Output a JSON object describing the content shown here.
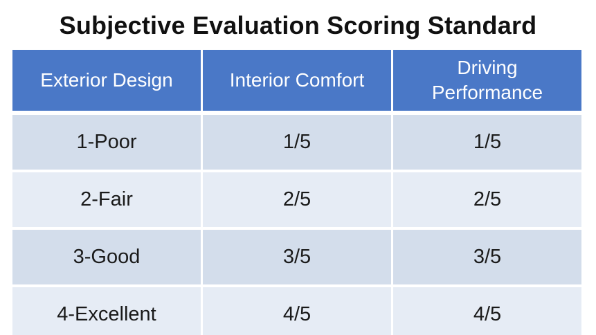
{
  "title": "Subjective Evaluation Scoring Standard",
  "table": {
    "headers": [
      "Exterior Design",
      "Interior Comfort",
      "Driving Performance"
    ],
    "rows": [
      [
        "1-Poor",
        "1/5",
        "1/5"
      ],
      [
        "2-Fair",
        "2/5",
        "2/5"
      ],
      [
        "3-Good",
        "3/5",
        "3/5"
      ],
      [
        "4-Excellent",
        "4/5",
        "4/5"
      ]
    ]
  },
  "colors": {
    "header_background": "#4a78c7",
    "header_text": "#ffffff",
    "row_odd_background": "#d3ddeb",
    "row_even_background": "#e6ecf5",
    "title_text": "#111111"
  }
}
